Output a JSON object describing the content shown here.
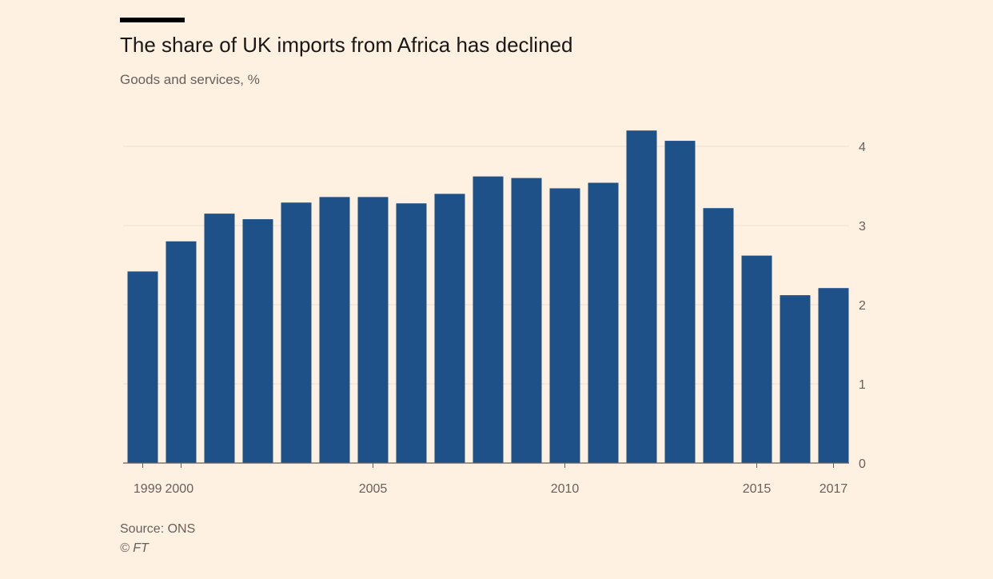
{
  "header": {
    "title": "The share of UK imports from Africa has declined",
    "subtitle": "Goods and services, %"
  },
  "footer": {
    "source": "Source: ONS",
    "copyright": "© FT"
  },
  "colors": {
    "background": "#fff1e2",
    "bar": "#1f5189",
    "grid": "#e9dfd2",
    "baseline": "#66605c",
    "text": "#66605c",
    "title": "#1a1817",
    "rule": "#000000"
  },
  "chart_data": {
    "type": "bar",
    "title": "The share of UK imports from Africa has declined",
    "subtitle": "Goods and services, %",
    "categories": [
      "1999",
      "2000",
      "2001",
      "2002",
      "2003",
      "2004",
      "2005",
      "2006",
      "2007",
      "2008",
      "2009",
      "2010",
      "2011",
      "2012",
      "2013",
      "2014",
      "2015",
      "2016",
      "2017"
    ],
    "values": [
      2.42,
      2.8,
      3.15,
      3.08,
      3.29,
      3.36,
      3.36,
      3.28,
      3.4,
      3.62,
      3.6,
      3.47,
      3.54,
      4.2,
      4.07,
      3.22,
      2.62,
      2.12,
      2.21
    ],
    "xlabel": "",
    "ylabel": "",
    "ylim": [
      0,
      4.2
    ],
    "yticks": [
      0,
      1,
      2,
      3,
      4
    ],
    "xtick_labels": [
      "1999",
      "2000",
      "2005",
      "2010",
      "2015",
      "2017"
    ],
    "y_axis_position": "right",
    "grid": true,
    "legend": "none"
  }
}
